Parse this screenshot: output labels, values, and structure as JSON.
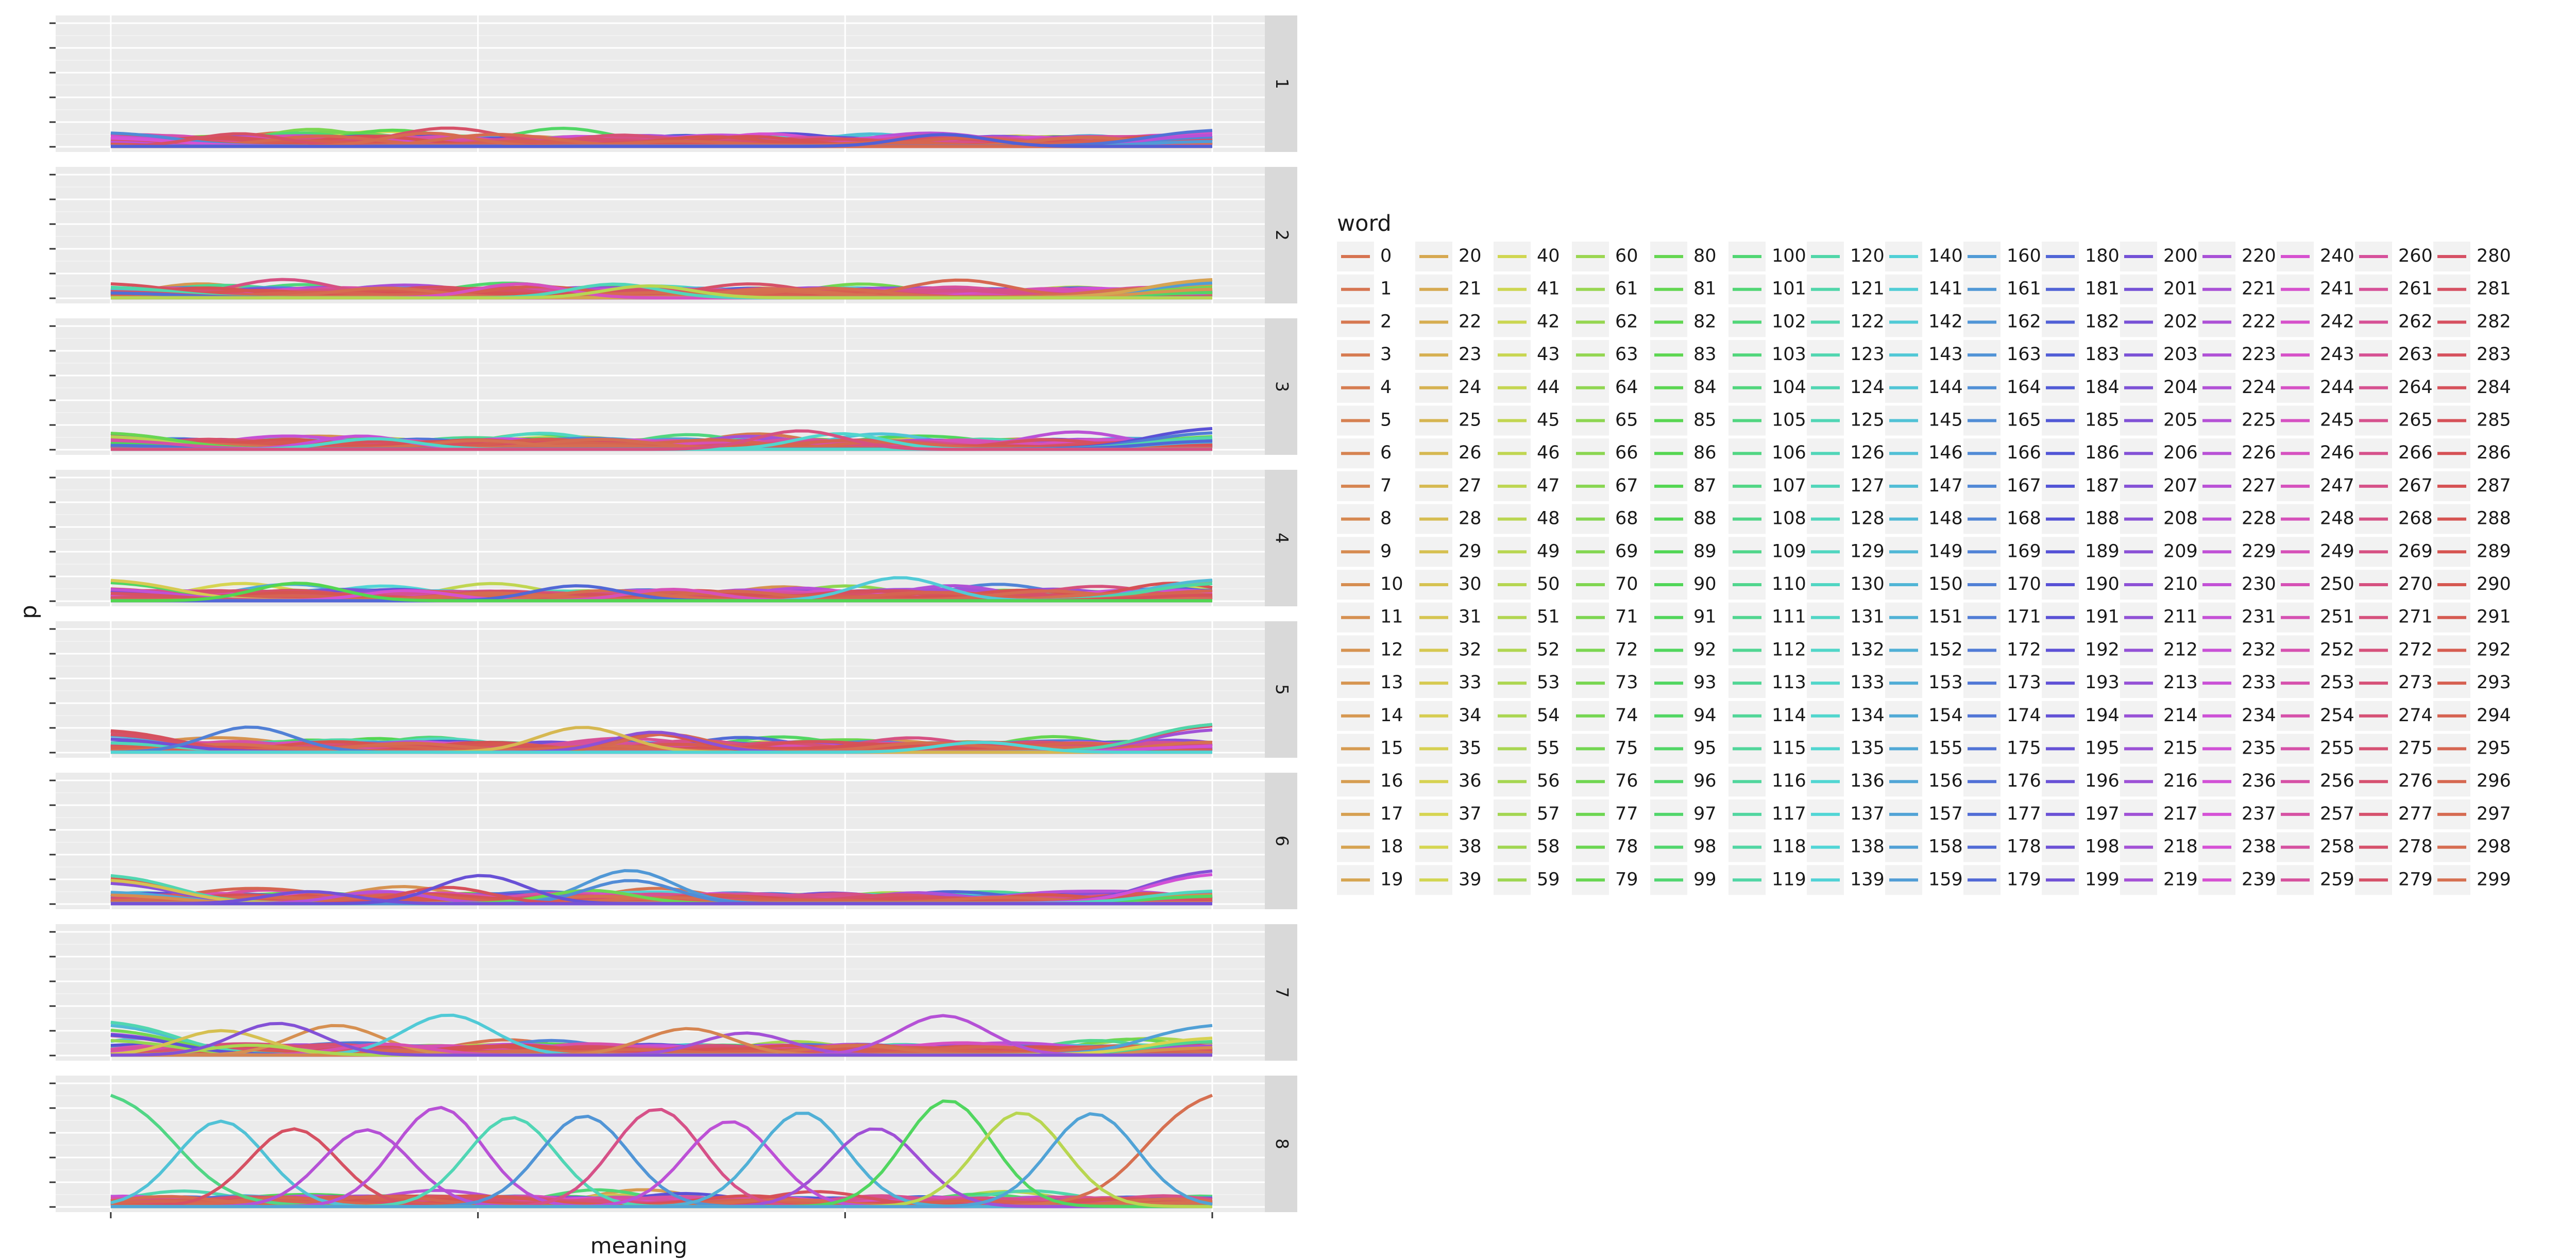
{
  "chart_data": {
    "type": "line",
    "facet_by": "panel",
    "panels": [
      "1",
      "2",
      "3",
      "4",
      "5",
      "6",
      "7",
      "8"
    ],
    "xlabel": "meaning",
    "ylabel": "p",
    "legend": {
      "title": "word",
      "placement": "right",
      "entries": 300,
      "columns": 15,
      "rows": 20
    },
    "grid": true,
    "x_ticks": 4,
    "y_ticks_per_panel": 5,
    "series_note": "Each line is one word's probability across meanings; word colors follow a hue wheel from red (0) through yellow, green, cyan, blue, purple, back to red (299).",
    "series_highlights": [
      {
        "panel": "8",
        "word": "40",
        "start": 0.98,
        "end": 0.02
      },
      {
        "panel": "8",
        "word": "299",
        "start": 0.0,
        "end": 0.98
      },
      {
        "panel": "8",
        "peaks_at": [
          0.1,
          0.17,
          0.24,
          0.27,
          0.33,
          0.4,
          0.46,
          0.53,
          0.6,
          0.67,
          0.74,
          0.81,
          0.88
        ],
        "height": 0.85
      },
      {
        "panel": "7",
        "word": "280",
        "start": 0.05,
        "end": 0.95
      },
      {
        "panel": "1",
        "max_value": 0.28
      }
    ]
  },
  "colors": {
    "panel_bg": "#ebebeb",
    "strip_bg": "#d9d9d9",
    "grid_major": "#ffffff",
    "grid_minor": "#f4f4f4"
  }
}
